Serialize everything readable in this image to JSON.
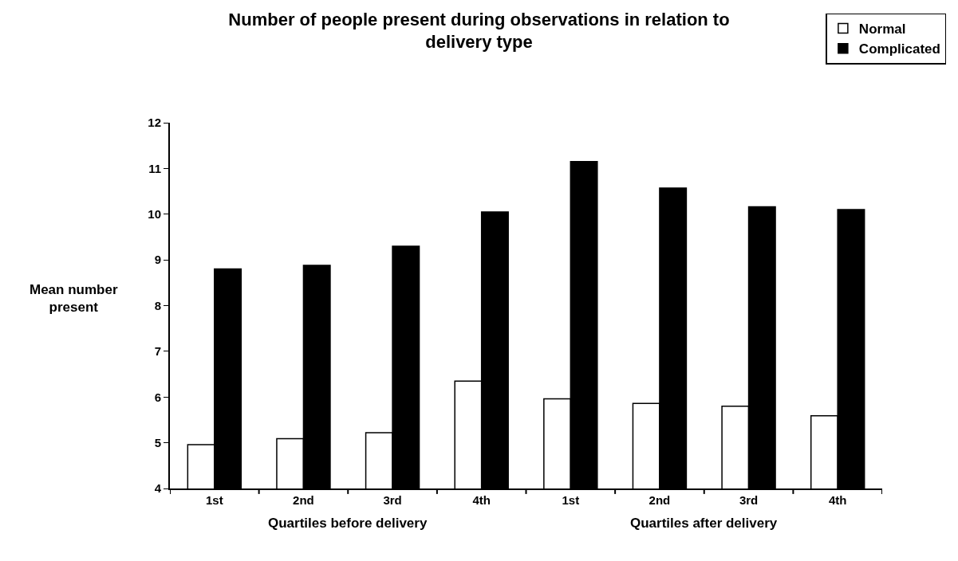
{
  "chart_data": {
    "type": "bar",
    "title": "Number of people present during observations in relation to delivery type",
    "ylabel": "Mean number present",
    "categories": [
      "1st",
      "2nd",
      "3rd",
      "4th",
      "1st",
      "2nd",
      "3rd",
      "4th"
    ],
    "series": [
      {
        "name": "Normal",
        "color": "#ffffff",
        "values": [
          4.96,
          5.09,
          5.22,
          6.35,
          5.96,
          5.86,
          5.8,
          5.59
        ]
      },
      {
        "name": "Complicated",
        "color": "#000000",
        "values": [
          8.8,
          8.88,
          9.3,
          10.05,
          11.15,
          10.57,
          10.16,
          10.1
        ]
      }
    ],
    "annotations": [
      "Quartiles before delivery",
      "Quartiles after delivery"
    ],
    "ylim": [
      4,
      12
    ],
    "yticks": [
      4,
      5,
      6,
      7,
      8,
      9,
      10,
      11,
      12
    ],
    "legend": "top right"
  }
}
